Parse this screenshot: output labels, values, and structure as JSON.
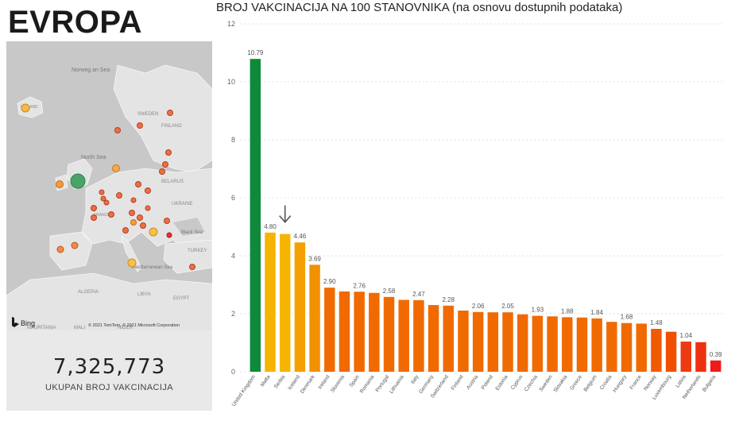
{
  "header": {
    "title": "EVROPA"
  },
  "map": {
    "labels": {
      "sea_norway": "Norweg an Sea",
      "sea_north": "North Sea",
      "sweden": "SWEDEN",
      "finland": "FINLAND",
      "belarus": "BELARUS",
      "ukraine": "UKRAINE",
      "black_sea": "Black Sea",
      "turkey": "TURKEY",
      "med_sea": "Mediterranean Sea",
      "algeria": "ALGERIA",
      "libya": "LIBYA",
      "egypt": "EGYPT",
      "mauritania": "MAURITANIA",
      "mali": "MALI",
      "niger": "NIGER",
      "iceland": "ICELAND",
      "france": "FRANCE"
    },
    "bing_label": "Bing",
    "copyright": "© 2021 TomTom, © 2021 Microsoft Corporation"
  },
  "kpi": {
    "value": "7,325,773",
    "label": "UKUPAN BROJ VAKCINACIJA"
  },
  "chart_data": {
    "type": "bar",
    "title": "BROJ VAKCINACIJA NA 100 STANOVNIKA (na osnovu dostupnih podataka)",
    "xlabel": "",
    "ylabel": "",
    "ylim": [
      0,
      12
    ],
    "yticks": [
      0,
      2,
      4,
      6,
      8,
      10,
      12
    ],
    "grid": true,
    "categories": [
      "United Kingdom",
      "Malta",
      "Serbia",
      "Iceland",
      "Denmark",
      "Ireland",
      "Slovenia",
      "Spain",
      "Romania",
      "Portugal",
      "Lithuania",
      "Italy",
      "Germany",
      "Switzerland",
      "Finland",
      "Austria",
      "Poland",
      "Estonia",
      "Cyprus",
      "Czechia",
      "Sweden",
      "Slovakia",
      "Greece",
      "Belgium",
      "Croatia",
      "Hungary",
      "France",
      "Norway",
      "Luxembourg",
      "Latvia",
      "Netherlands",
      "Bulgaria"
    ],
    "values": [
      10.79,
      4.8,
      4.75,
      4.46,
      3.69,
      2.9,
      2.77,
      2.76,
      2.72,
      2.58,
      2.48,
      2.47,
      2.3,
      2.28,
      2.11,
      2.06,
      2.05,
      2.05,
      1.98,
      1.93,
      1.91,
      1.88,
      1.87,
      1.84,
      1.72,
      1.68,
      1.66,
      1.48,
      1.38,
      1.04,
      1.02,
      0.39
    ],
    "data_labels": [
      "10.79",
      "4.80",
      "",
      "4.46",
      "3.69",
      "2.90",
      "",
      "2.76",
      "",
      "2.58",
      "",
      "2.47",
      "",
      "2.28",
      "",
      "2.06",
      "",
      "2.05",
      "",
      "1.93",
      "",
      "1.88",
      "",
      "1.84",
      "",
      "1.68",
      "",
      "1.48",
      "",
      "1.04",
      "",
      "0.39"
    ],
    "colors": [
      "#0f8a3a",
      "#f5b400",
      "#f5b400",
      "#f5a000",
      "#f39000",
      "#f06a00",
      "#f06a00",
      "#f06a00",
      "#f06a00",
      "#f06a00",
      "#f06a00",
      "#f06a00",
      "#f06a00",
      "#f06a00",
      "#f06a00",
      "#f06a00",
      "#f06a00",
      "#f06a00",
      "#f06a00",
      "#f06a00",
      "#f06a00",
      "#f06a00",
      "#f06a00",
      "#f06a00",
      "#f06a00",
      "#f06a00",
      "#f06a00",
      "#f05a00",
      "#f04e00",
      "#ee3a10",
      "#ee3010",
      "#ef1a1a"
    ],
    "annotation": {
      "type": "arrow-down",
      "category": "Serbia"
    }
  }
}
